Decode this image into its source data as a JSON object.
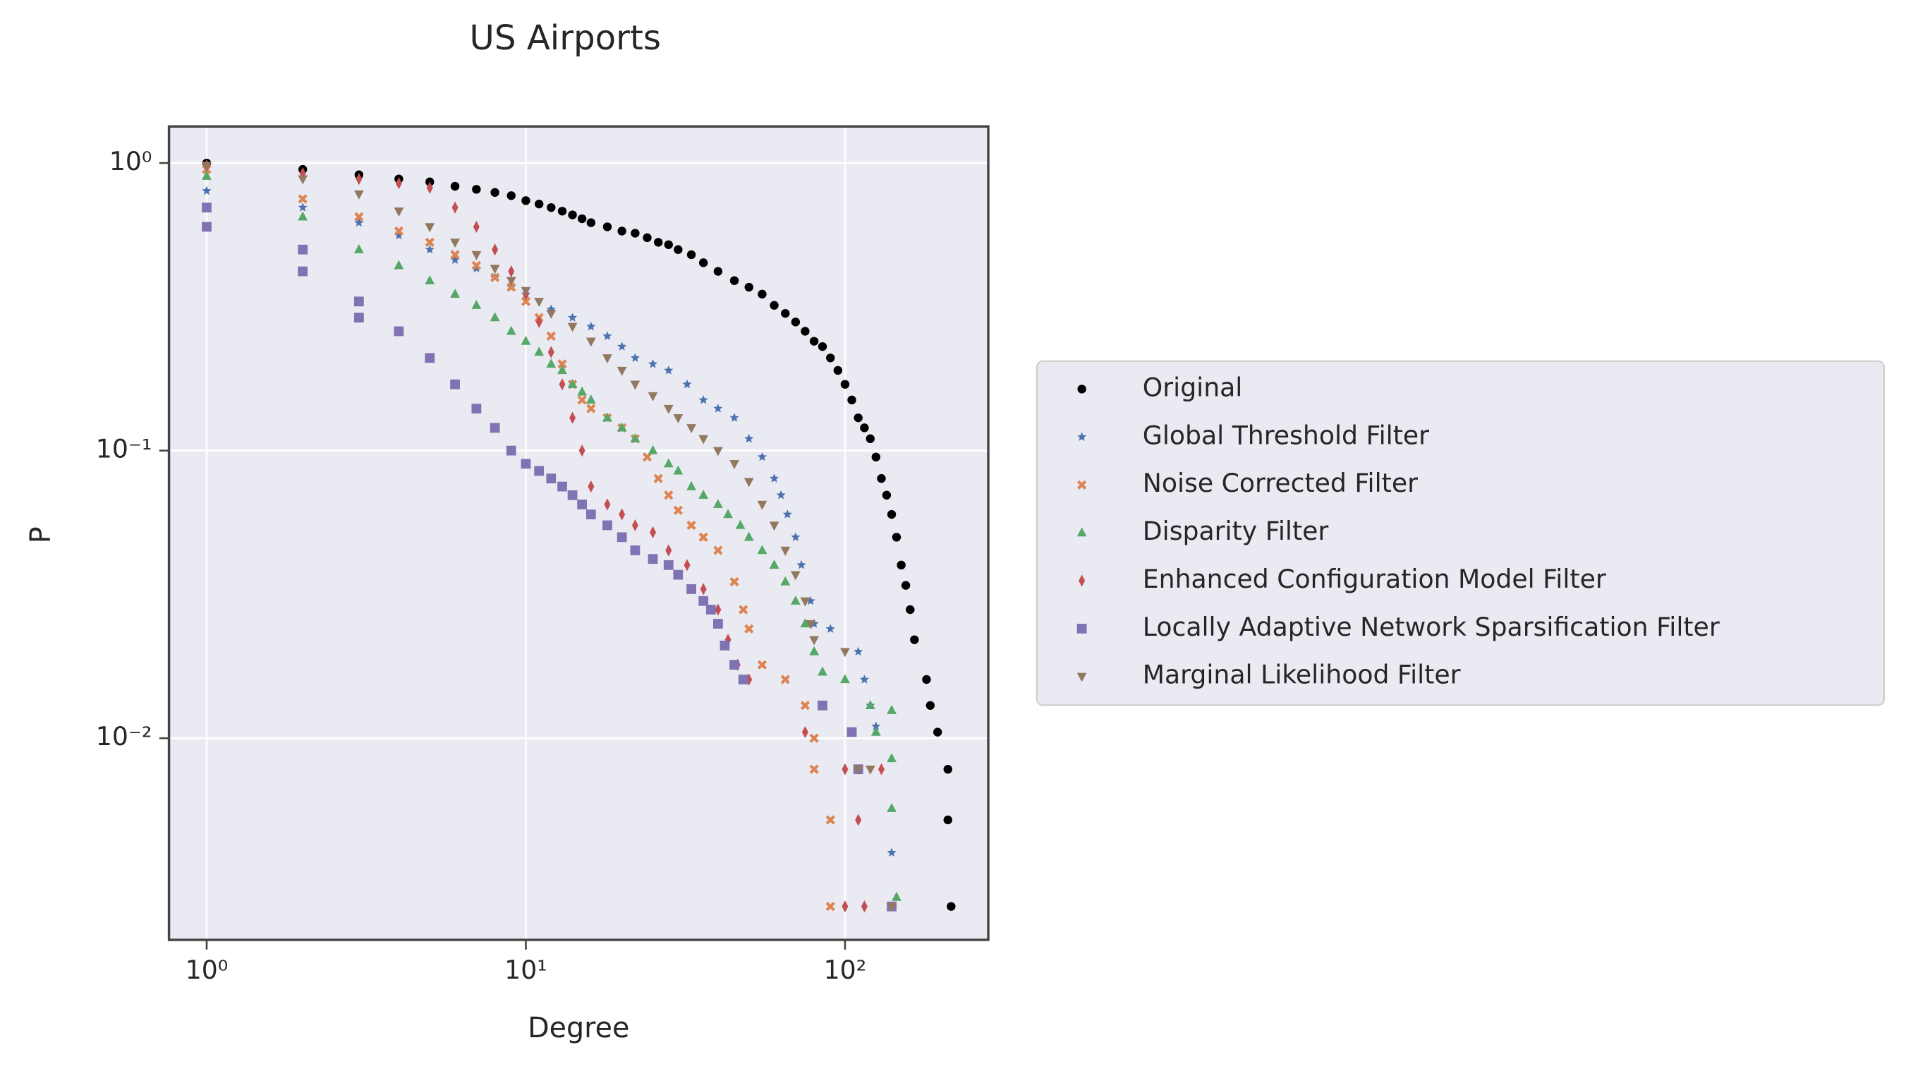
{
  "chart_data": {
    "type": "scatter",
    "title": "US Airports",
    "x_label": "Degree",
    "y_label": "P",
    "xscale": "log",
    "yscale": "log",
    "grid": true,
    "legend": "outside-right",
    "xlim": [
      0.762,
      281
    ],
    "ylim": [
      0.00199,
      1.34
    ],
    "xticks": [
      {
        "value": 1,
        "label": "10⁰"
      },
      {
        "value": 10,
        "label": "10¹"
      },
      {
        "value": 100,
        "label": "10²"
      }
    ],
    "yticks": [
      {
        "value": 1,
        "label": "10⁰"
      },
      {
        "value": 0.1,
        "label": "10⁻¹"
      },
      {
        "value": 0.01,
        "label": "10⁻²"
      }
    ],
    "series": [
      {
        "name": "Original",
        "color": "#000000",
        "marker": "circle",
        "x": [
          1,
          2,
          3,
          4,
          5,
          6,
          7,
          8,
          9,
          10,
          11,
          12,
          13,
          14,
          15,
          16,
          18,
          20,
          22,
          24,
          26,
          28,
          30,
          33,
          36,
          40,
          45,
          50,
          55,
          60,
          65,
          70,
          75,
          80,
          85,
          90,
          95,
          100,
          105,
          110,
          115,
          120,
          125,
          130,
          135,
          140,
          145,
          150,
          155,
          160,
          165,
          180,
          185,
          195,
          210,
          210,
          215
        ],
        "values": [
          1.0,
          0.95,
          0.91,
          0.88,
          0.86,
          0.83,
          0.81,
          0.79,
          0.77,
          0.74,
          0.72,
          0.7,
          0.68,
          0.66,
          0.64,
          0.62,
          0.6,
          0.58,
          0.57,
          0.55,
          0.53,
          0.52,
          0.5,
          0.48,
          0.45,
          0.42,
          0.39,
          0.37,
          0.35,
          0.32,
          0.3,
          0.28,
          0.26,
          0.24,
          0.23,
          0.21,
          0.19,
          0.17,
          0.15,
          0.13,
          0.12,
          0.11,
          0.095,
          0.08,
          0.07,
          0.06,
          0.05,
          0.04,
          0.034,
          0.028,
          0.022,
          0.016,
          0.013,
          0.0105,
          0.0078,
          0.0052,
          0.0026
        ]
      },
      {
        "name": "Global Threshold Filter",
        "color": "#4c72b0",
        "marker": "star",
        "x": [
          1,
          2,
          3,
          4,
          5,
          6,
          7,
          8,
          9,
          10,
          12,
          14,
          16,
          18,
          20,
          22,
          25,
          28,
          32,
          36,
          40,
          45,
          50,
          55,
          60,
          63,
          66,
          70,
          73,
          78,
          80,
          90,
          110,
          115,
          120,
          125,
          140
        ],
        "values": [
          0.8,
          0.7,
          0.62,
          0.56,
          0.5,
          0.46,
          0.43,
          0.4,
          0.37,
          0.35,
          0.31,
          0.29,
          0.27,
          0.25,
          0.23,
          0.21,
          0.2,
          0.19,
          0.17,
          0.15,
          0.14,
          0.13,
          0.11,
          0.095,
          0.08,
          0.07,
          0.06,
          0.05,
          0.04,
          0.03,
          0.025,
          0.024,
          0.02,
          0.016,
          0.013,
          0.011,
          0.004
        ]
      },
      {
        "name": "Noise Corrected Filter",
        "color": "#dd8452",
        "marker": "x",
        "x": [
          1,
          2,
          3,
          4,
          5,
          6,
          7,
          8,
          9,
          10,
          11,
          12,
          13,
          14,
          15,
          16,
          18,
          20,
          22,
          24,
          26,
          28,
          30,
          33,
          36,
          40,
          45,
          48,
          50,
          55,
          65,
          75,
          80,
          80,
          90,
          90
        ],
        "values": [
          0.95,
          0.75,
          0.65,
          0.58,
          0.53,
          0.48,
          0.44,
          0.4,
          0.37,
          0.33,
          0.29,
          0.25,
          0.2,
          0.17,
          0.15,
          0.14,
          0.13,
          0.12,
          0.11,
          0.095,
          0.08,
          0.07,
          0.062,
          0.055,
          0.05,
          0.045,
          0.035,
          0.028,
          0.024,
          0.018,
          0.016,
          0.013,
          0.01,
          0.0078,
          0.0052,
          0.0026
        ]
      },
      {
        "name": "Disparity Filter",
        "color": "#55a868",
        "marker": "triangle-up",
        "x": [
          1,
          2,
          3,
          4,
          5,
          6,
          7,
          8,
          9,
          10,
          11,
          12,
          13,
          14,
          15,
          16,
          18,
          20,
          22,
          25,
          28,
          30,
          33,
          36,
          40,
          43,
          47,
          50,
          55,
          60,
          65,
          70,
          75,
          80,
          85,
          100,
          120,
          125,
          140,
          140,
          140,
          145
        ],
        "values": [
          0.9,
          0.65,
          0.5,
          0.44,
          0.39,
          0.35,
          0.32,
          0.29,
          0.26,
          0.24,
          0.22,
          0.2,
          0.19,
          0.17,
          0.16,
          0.15,
          0.13,
          0.12,
          0.11,
          0.1,
          0.09,
          0.085,
          0.075,
          0.07,
          0.065,
          0.06,
          0.055,
          0.05,
          0.045,
          0.04,
          0.035,
          0.03,
          0.025,
          0.02,
          0.017,
          0.016,
          0.013,
          0.0105,
          0.0125,
          0.0085,
          0.0057,
          0.0028
        ]
      },
      {
        "name": "Enhanced Configuration Model Filter",
        "color": "#c44e52",
        "marker": "diamond",
        "x": [
          1,
          2,
          3,
          4,
          5,
          6,
          7,
          8,
          9,
          10,
          11,
          12,
          13,
          14,
          15,
          16,
          18,
          20,
          22,
          25,
          28,
          32,
          36,
          40,
          43,
          46,
          50,
          75,
          100,
          110,
          130,
          115,
          100
        ],
        "values": [
          0.98,
          0.92,
          0.88,
          0.85,
          0.82,
          0.7,
          0.6,
          0.5,
          0.42,
          0.35,
          0.28,
          0.22,
          0.17,
          0.13,
          0.1,
          0.075,
          0.065,
          0.06,
          0.055,
          0.052,
          0.045,
          0.04,
          0.033,
          0.028,
          0.022,
          0.018,
          0.016,
          0.0105,
          0.0078,
          0.0052,
          0.0078,
          0.0026,
          0.0026
        ]
      },
      {
        "name": "Locally Adaptive Network Sparsification Filter",
        "color": "#8172b3",
        "marker": "square",
        "x": [
          1,
          1,
          2,
          2,
          3,
          3,
          4,
          5,
          6,
          7,
          8,
          9,
          10,
          11,
          12,
          13,
          14,
          15,
          16,
          18,
          20,
          22,
          25,
          28,
          30,
          33,
          36,
          38,
          40,
          42,
          45,
          48,
          85,
          105,
          110,
          140
        ],
        "values": [
          0.7,
          0.6,
          0.5,
          0.42,
          0.33,
          0.29,
          0.26,
          0.21,
          0.17,
          0.14,
          0.12,
          0.1,
          0.09,
          0.085,
          0.08,
          0.075,
          0.07,
          0.065,
          0.06,
          0.055,
          0.05,
          0.045,
          0.042,
          0.04,
          0.037,
          0.033,
          0.03,
          0.028,
          0.025,
          0.021,
          0.018,
          0.016,
          0.013,
          0.0105,
          0.0078,
          0.0026
        ]
      },
      {
        "name": "Marginal Likelihood Filter",
        "color": "#937860",
        "marker": "triangle-down",
        "x": [
          1,
          2,
          3,
          4,
          5,
          6,
          7,
          8,
          9,
          10,
          11,
          12,
          14,
          16,
          18,
          20,
          22,
          25,
          28,
          30,
          33,
          36,
          40,
          45,
          50,
          55,
          60,
          65,
          70,
          75,
          78,
          80,
          100,
          110,
          120,
          140
        ],
        "values": [
          0.98,
          0.88,
          0.78,
          0.68,
          0.6,
          0.53,
          0.48,
          0.43,
          0.39,
          0.36,
          0.33,
          0.3,
          0.27,
          0.24,
          0.21,
          0.19,
          0.17,
          0.155,
          0.14,
          0.13,
          0.12,
          0.11,
          0.1,
          0.09,
          0.078,
          0.065,
          0.055,
          0.045,
          0.037,
          0.03,
          0.025,
          0.022,
          0.02,
          0.0078,
          0.0078,
          0.0026
        ]
      }
    ]
  }
}
